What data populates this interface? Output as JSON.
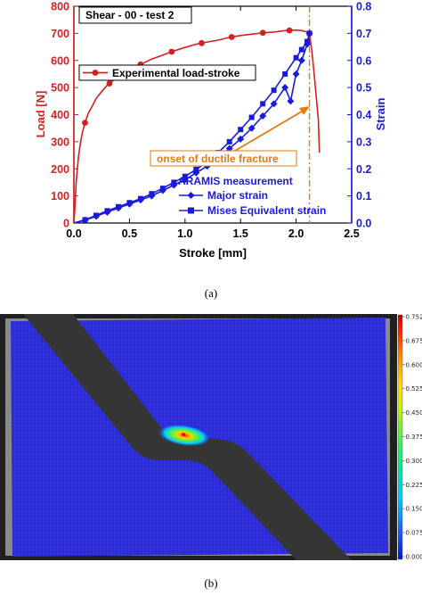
{
  "figure": {
    "panel_a_caption": "(a)",
    "panel_b_caption": "(b)"
  },
  "chart_data": [
    {
      "type": "line",
      "title": "Shear - 00 - test 2",
      "xlabel": "Stroke [mm]",
      "ylabel_left": "Load [N]",
      "ylabel_right": "Strain",
      "xlim": [
        0,
        2.5
      ],
      "ylim_left": [
        0,
        800
      ],
      "ylim_right": [
        0,
        0.8
      ],
      "x_ticks": [
        "0.0",
        "0.5",
        "1.0",
        "1.5",
        "2.0",
        "2.5"
      ],
      "y_left_ticks": [
        "0",
        "100",
        "200",
        "300",
        "400",
        "500",
        "600",
        "700",
        "800"
      ],
      "y_right_ticks": [
        "0.0",
        "0.1",
        "0.2",
        "0.3",
        "0.4",
        "0.5",
        "0.6",
        "0.7",
        "0.8"
      ],
      "grid": false,
      "legend_load": "Experimental load-stroke",
      "legend_strain_title": "ARAMIS measurement",
      "legend_strain_location": "lower-right",
      "annotation": {
        "text": "onset of ductile fracture",
        "x_line": 2.12,
        "color": "#e07b10"
      },
      "colors": {
        "load": "#d42020",
        "strain": "#1a1adc",
        "annotation": "#e07b10"
      },
      "series": [
        {
          "name": "Experimental load-stroke",
          "axis": "left",
          "marker": "circle",
          "x": [
            0.0,
            0.01,
            0.02,
            0.04,
            0.06,
            0.08,
            0.1,
            0.13,
            0.17,
            0.2,
            0.25,
            0.3,
            0.35,
            0.4,
            0.5,
            0.6,
            0.7,
            0.8,
            0.9,
            1.0,
            1.1,
            1.2,
            1.3,
            1.4,
            1.5,
            1.6,
            1.7,
            1.8,
            1.9,
            2.0,
            2.05,
            2.1,
            2.12,
            2.14,
            2.16,
            2.18,
            2.2,
            2.21
          ],
          "y": [
            0,
            60,
            150,
            240,
            300,
            340,
            370,
            405,
            435,
            460,
            485,
            508,
            525,
            540,
            565,
            585,
            605,
            620,
            635,
            648,
            660,
            668,
            675,
            685,
            692,
            697,
            702,
            705,
            710,
            712,
            710,
            705,
            700,
            640,
            560,
            470,
            380,
            260
          ],
          "markers_x": [
            0.1,
            0.32,
            0.6,
            0.88,
            1.15,
            1.42,
            1.7,
            1.94
          ]
        },
        {
          "name": "Major strain",
          "axis": "right",
          "marker": "diamond",
          "x": [
            0.0,
            0.1,
            0.2,
            0.3,
            0.4,
            0.5,
            0.6,
            0.7,
            0.8,
            0.9,
            1.0,
            1.1,
            1.2,
            1.3,
            1.4,
            1.5,
            1.6,
            1.7,
            1.8,
            1.9,
            1.95,
            2.0,
            2.05,
            2.1,
            2.12
          ],
          "y": [
            0.0,
            0.01,
            0.025,
            0.04,
            0.055,
            0.07,
            0.085,
            0.1,
            0.12,
            0.14,
            0.16,
            0.185,
            0.21,
            0.24,
            0.275,
            0.31,
            0.35,
            0.395,
            0.44,
            0.5,
            0.45,
            0.55,
            0.6,
            0.66,
            0.7
          ]
        },
        {
          "name": "Mises Equivalent strain",
          "axis": "right",
          "marker": "square",
          "x": [
            0.0,
            0.1,
            0.2,
            0.3,
            0.4,
            0.5,
            0.6,
            0.7,
            0.8,
            0.9,
            1.0,
            1.1,
            1.2,
            1.3,
            1.4,
            1.5,
            1.6,
            1.7,
            1.8,
            1.9,
            2.0,
            2.05,
            2.1,
            2.12
          ],
          "y": [
            0.0,
            0.012,
            0.028,
            0.045,
            0.06,
            0.075,
            0.09,
            0.108,
            0.128,
            0.15,
            0.172,
            0.198,
            0.225,
            0.26,
            0.3,
            0.345,
            0.39,
            0.44,
            0.49,
            0.55,
            0.61,
            0.64,
            0.67,
            0.7
          ]
        }
      ]
    },
    {
      "type": "heatmap",
      "colorbar_ticks": [
        "0.75298",
        "0.67500",
        "0.60000",
        "0.52500",
        "0.45000",
        "0.37500",
        "0.30000",
        "0.22500",
        "0.15000",
        "0.07500",
        "0.00010"
      ],
      "colorbar_range": [
        0.0001,
        0.75298
      ],
      "colormap": [
        "#0a14c8",
        "#1e64ff",
        "#00c8ff",
        "#00e6a0",
        "#50f050",
        "#c8f000",
        "#ffd700",
        "#ff8c00",
        "#ff2800",
        "#c80000"
      ],
      "background_field_color": "#2a2ad6"
    }
  ]
}
